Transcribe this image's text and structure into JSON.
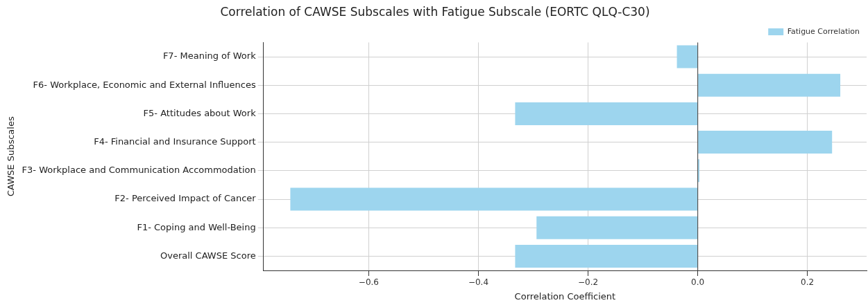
{
  "chart_data": {
    "type": "bar",
    "orientation": "horizontal",
    "title": "Correlation of CAWSE Subscales with Fatigue Subscale (EORTC QLQ-C30)",
    "xlabel": "Correlation Coefficient",
    "ylabel": "CAWSE Subscales",
    "categories": [
      "F7- Meaning of Work",
      "F6- Workplace, Economic and External Influences",
      "F5- Attitudes about Work",
      "F4- Financial and Insurance Support",
      "F3- Workplace and Communication Accommodation",
      "F2- Perceived Impact of Cancer",
      "F1- Coping and Well-Being",
      "Overall CAWSE Score"
    ],
    "series": [
      {
        "name": "Fatigue Correlation",
        "color": "#9dd5ee",
        "values": [
          -0.038,
          0.26,
          -0.333,
          0.245,
          0.003,
          -0.743,
          -0.294,
          -0.333
        ]
      }
    ],
    "xlim": [
      -0.792,
      0.308
    ],
    "xticks": [
      {
        "value": -0.6,
        "label": "−0.6"
      },
      {
        "value": -0.4,
        "label": "−0.4"
      },
      {
        "value": -0.2,
        "label": "−0.2"
      },
      {
        "value": 0,
        "label": "0.0"
      },
      {
        "value": 0.2,
        "label": "0.2"
      }
    ],
    "ref_lines": [
      {
        "axis": "x",
        "value": 0,
        "color": "#555555"
      }
    ],
    "grid": true,
    "legend": "top right"
  }
}
